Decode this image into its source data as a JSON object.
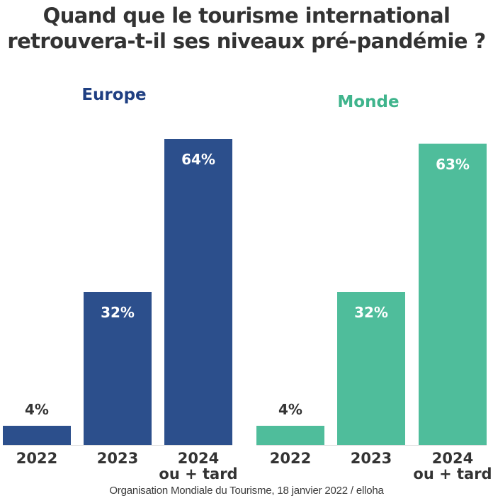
{
  "title_lines": [
    "Quand que le tourisme international",
    "retrouvera-t-il ses niveaux pré-pandémie ?"
  ],
  "source": "Organisation Mondiale du Tourisme, 18 janvier 2022 / elloha",
  "chart_data": {
    "type": "bar",
    "title": "Quand que le tourisme international retrouvera-t-il ses niveaux pré-pandémie ?",
    "groups": [
      {
        "name": "Europe",
        "color": "#2c4f8c",
        "label_color": "#1f3f82",
        "categories": [
          "2022",
          "2023",
          "2024 ou + tard"
        ],
        "values": [
          4,
          32,
          64
        ],
        "value_labels": [
          "4%",
          "32%",
          "64%"
        ]
      },
      {
        "name": "Monde",
        "color": "#4fbd9b",
        "label_color": "#3fb48c",
        "categories": [
          "2022",
          "2023",
          "2024 ou + tard"
        ],
        "values": [
          4,
          32,
          63
        ],
        "value_labels": [
          "4%",
          "32%",
          "63%"
        ]
      }
    ],
    "ylim": [
      0,
      100
    ],
    "grid": false,
    "legend": "none",
    "xlabel": "",
    "ylabel": ""
  }
}
